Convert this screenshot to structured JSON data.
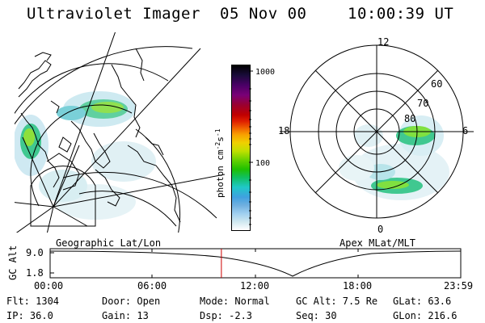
{
  "header": {
    "title": "Ultraviolet Imager",
    "date": "05 Nov 00",
    "time": "10:00:39 UT"
  },
  "panels": {
    "left_label": "Geographic Lat/Lon",
    "right_label": "Apex MLat/MLT"
  },
  "colorbar": {
    "axis_label": "photon cm",
    "exp1": "-2",
    "mid": "s",
    "exp2": "-1",
    "ticks": [
      "1000",
      "100"
    ],
    "colors": [
      "#000000",
      "#1a0b3a",
      "#4a0066",
      "#7a0077",
      "#9a0030",
      "#c00000",
      "#e02000",
      "#f06000",
      "#f8a000",
      "#f0d000",
      "#c0e000",
      "#60d000",
      "#20c000",
      "#10c060",
      "#20c8c8",
      "#40a0e0",
      "#70b0e0",
      "#a0d0f0",
      "#d0e8f0",
      "#ffffff"
    ]
  },
  "polar": {
    "labels": {
      "top": "12",
      "bottom": "0",
      "left": "18",
      "right": "6",
      "r60": "60",
      "r70": "70",
      "r80": "80"
    }
  },
  "timeline": {
    "axis_label": "GC Alt",
    "y_ticks": [
      "9.0",
      "1.8"
    ],
    "x_ticks": [
      "00:00",
      "06:00",
      "12:00",
      "18:00",
      "23:59"
    ],
    "marker_color": "#cc0000",
    "marker_time_hours": 10.01
  },
  "info": {
    "flt": "Flt: 1304",
    "ip": "IP: 36.0",
    "door": "Door: Open",
    "gain": "Gain: 13",
    "mode": "Mode: Normal",
    "dsp": "Dsp:   -2.3",
    "gcalt": "GC Alt: 7.5 Re",
    "seq": "Seq: 30",
    "glat": "GLat:  63.6",
    "glon": "GLon: 216.6"
  }
}
